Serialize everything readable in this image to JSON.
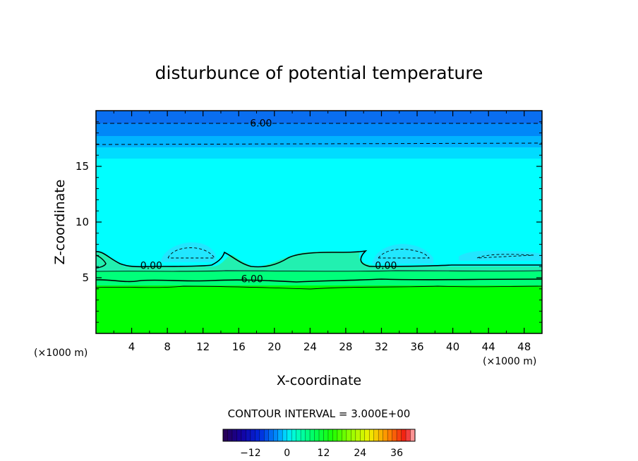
{
  "chart_data": {
    "type": "heatmap",
    "title": "disturbunce of potential temperature",
    "xlabel": "X-coordinate",
    "ylabel": "Z-coordinate",
    "x_unit_left": "(×1000 m)",
    "x_unit_right": "(×1000 m)",
    "xlim": [
      0,
      50
    ],
    "ylim": [
      0,
      20
    ],
    "x_ticks": [
      "4",
      "8",
      "12",
      "16",
      "20",
      "24",
      "28",
      "32",
      "36",
      "40",
      "44",
      "48"
    ],
    "x_tick_values": [
      4,
      8,
      12,
      16,
      20,
      24,
      28,
      32,
      36,
      40,
      44,
      48
    ],
    "y_ticks": [
      "5",
      "10",
      "15"
    ],
    "y_tick_values": [
      5,
      10,
      15
    ],
    "contour_labels": [
      {
        "text": "6.00",
        "x": 18.5,
        "z": 18.9
      },
      {
        "text": "0.00",
        "x": 6.2,
        "z": 6.1
      },
      {
        "text": "6.00",
        "x": 17.5,
        "z": 4.9
      },
      {
        "text": "0.00",
        "x": 32.5,
        "z": 6.1
      }
    ],
    "contour_interval_text": "CONTOUR INTERVAL = 3.000E+00",
    "colorbar": {
      "min": -21,
      "max": 42,
      "tick_labels": [
        "−12",
        "0",
        "12",
        "24",
        "36"
      ],
      "tick_values": [
        -12,
        0,
        12,
        24,
        36
      ]
    },
    "colors": {
      "top_band": "#0a6ef0",
      "upper_band": "#0096ff",
      "cyan": "#00ffff",
      "cyan_light": "#33f8ee",
      "transition": "#22f0b0",
      "green_band": "#00ff55",
      "green": "#00ff00"
    }
  }
}
